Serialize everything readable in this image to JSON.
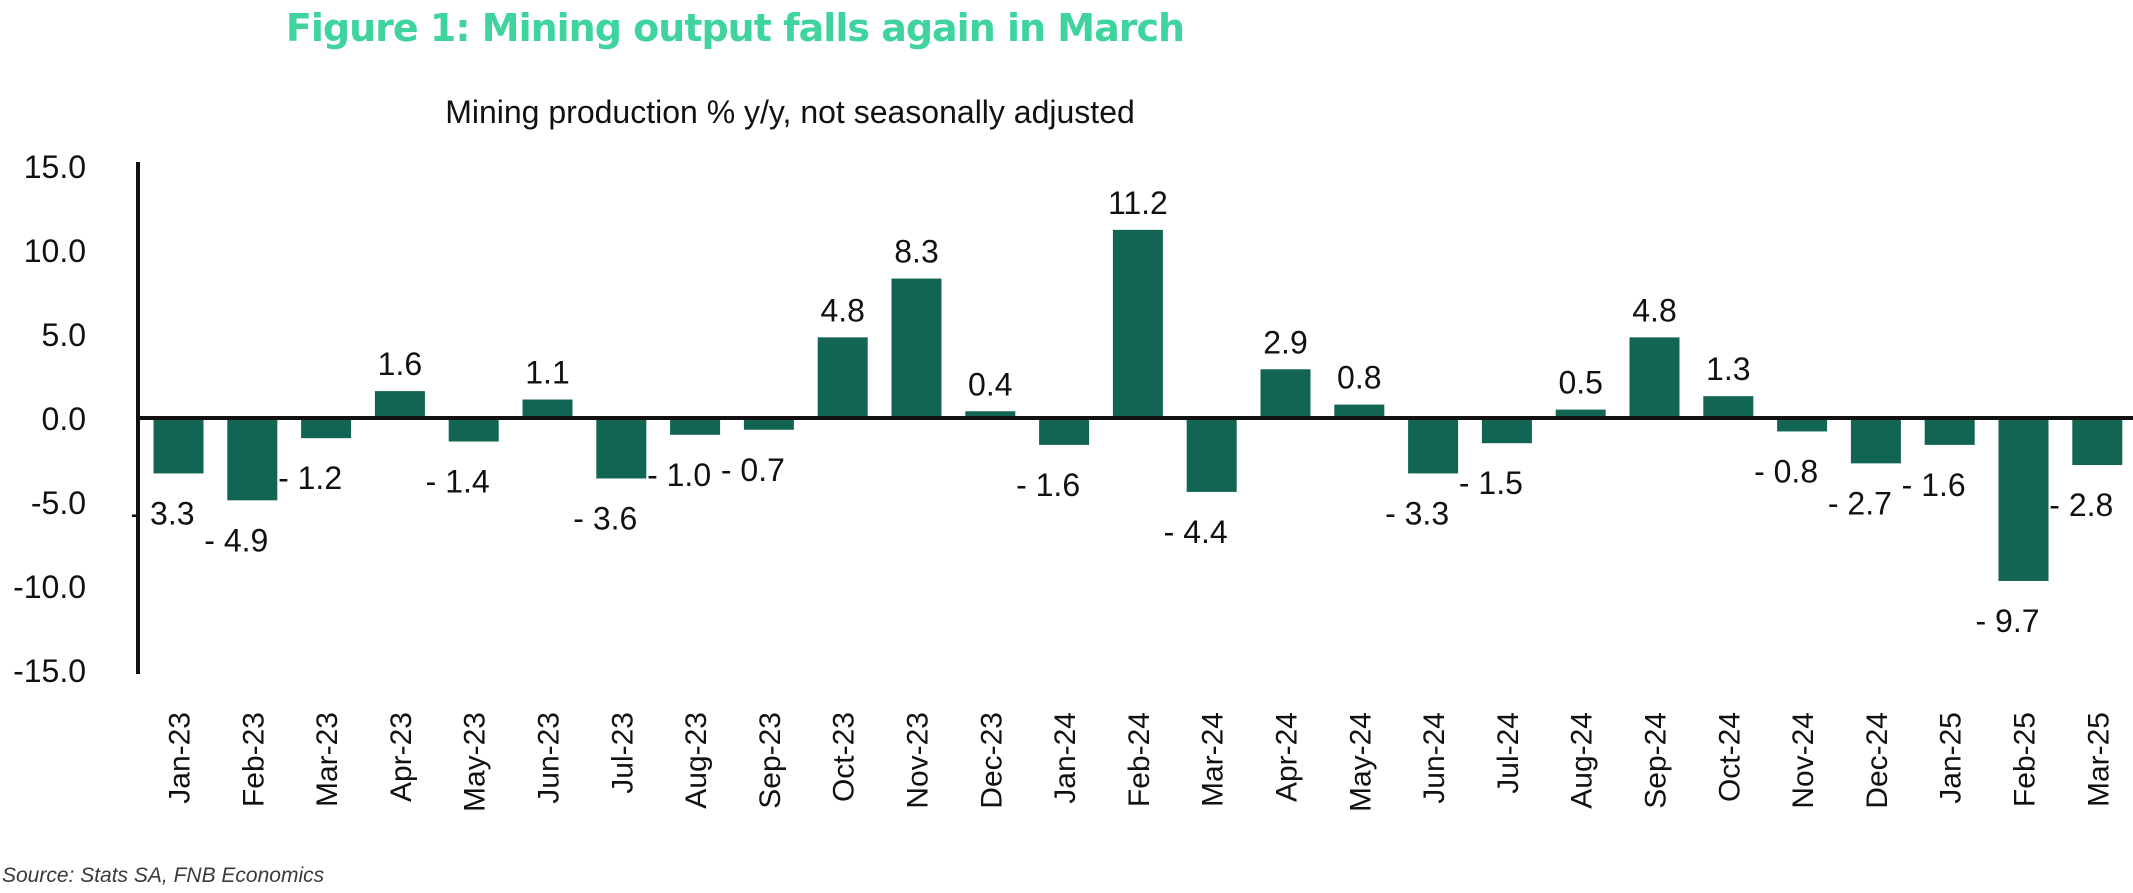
{
  "title": "Figure 1: Mining output falls again in March",
  "source": "Source: Stats SA, FNB Economics",
  "chart_data": {
    "type": "bar",
    "title": "Mining production % y/y, not seasonally adjusted",
    "xlabel": "",
    "ylabel": "",
    "ylim": [
      -15,
      15
    ],
    "yticks": [
      15,
      10,
      5,
      0,
      -5,
      -10,
      -15
    ],
    "ytick_labels": [
      "15.0",
      "10.0",
      "5.0",
      "0.0",
      "-5.0",
      "-10.0",
      "-15.0"
    ],
    "grid": false,
    "legend": "none",
    "bar_color": "#126552",
    "categories": [
      "Jan-23",
      "Feb-23",
      "Mar-23",
      "Apr-23",
      "May-23",
      "Jun-23",
      "Jul-23",
      "Aug-23",
      "Sep-23",
      "Oct-23",
      "Nov-23",
      "Dec-23",
      "Jan-24",
      "Feb-24",
      "Mar-24",
      "Apr-24",
      "May-24",
      "Jun-24",
      "Jul-24",
      "Aug-24",
      "Sep-24",
      "Oct-24",
      "Nov-24",
      "Dec-24",
      "Jan-25",
      "Feb-25",
      "Mar-25"
    ],
    "values": [
      -3.3,
      -4.9,
      -1.2,
      1.6,
      -1.4,
      1.1,
      -3.6,
      -1.0,
      -0.7,
      4.8,
      8.3,
      0.4,
      -1.6,
      11.2,
      -4.4,
      2.9,
      0.8,
      -3.3,
      -1.5,
      0.5,
      4.8,
      1.3,
      -0.8,
      -2.7,
      -1.6,
      -9.7,
      -2.8
    ],
    "data_labels": [
      "- 3.3",
      "- 4.9",
      "- 1.2",
      "1.6",
      "- 1.4",
      "1.1",
      "- 3.6",
      "- 1.0",
      "- 0.7",
      "4.8",
      "8.3",
      "0.4",
      "- 1.6",
      "11.2",
      "- 4.4",
      "2.9",
      "0.8",
      "- 3.3",
      "- 1.5",
      "0.5",
      "4.8",
      "1.3",
      "- 0.8",
      "- 2.7",
      "- 1.6",
      "- 9.7",
      "- 2.8"
    ]
  }
}
